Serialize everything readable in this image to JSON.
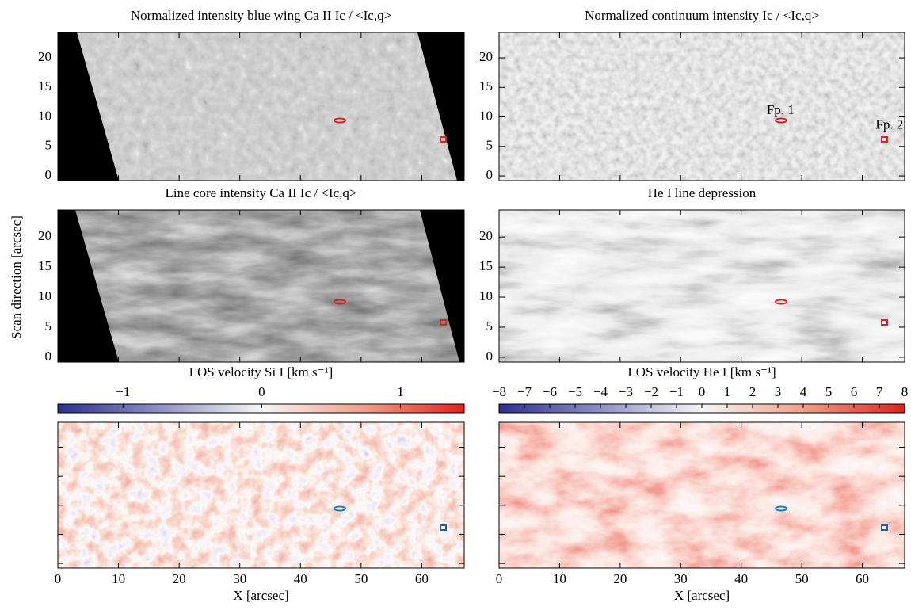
{
  "chart_data": [
    {
      "type": "image",
      "title": "Normalized intensity blue wing Ca II   Ic / <Ic,q>",
      "colormap": "gray",
      "xlim": [
        0,
        67
      ],
      "ylim": [
        -0.8,
        24.3
      ],
      "xticks": [
        0,
        10,
        20,
        30,
        40,
        50,
        60
      ],
      "yticks": [
        0,
        5,
        10,
        15,
        20
      ],
      "show_xtick_labels": false,
      "show_ytick_labels": true
    },
    {
      "type": "image",
      "title": "Normalized continuum intensity   Ic / <Ic,q>",
      "colormap": "gray-light",
      "xlim": [
        0,
        67
      ],
      "ylim": [
        -0.8,
        24.3
      ],
      "xticks": [
        0,
        10,
        20,
        30,
        40,
        50,
        60
      ],
      "yticks": [
        0,
        5,
        10,
        15,
        20
      ],
      "show_xtick_labels": false,
      "show_ytick_labels": true,
      "annotations": [
        {
          "text": "Fp. 1",
          "x": 46.5,
          "y": 11,
          "color": "#2a7ab8"
        },
        {
          "text": "Fp. 2",
          "x": 64.5,
          "y": 8.5,
          "color": "#2a7ab8"
        }
      ]
    },
    {
      "type": "image",
      "title": "Line core intensity Ca II   Ic / <Ic,q>",
      "colormap": "gray-dark",
      "xlim": [
        0,
        67
      ],
      "ylim": [
        -0.8,
        24.5
      ],
      "xticks": [
        0,
        10,
        20,
        30,
        40,
        50,
        60
      ],
      "yticks": [
        0,
        5,
        10,
        15,
        20
      ],
      "show_xtick_labels": false,
      "show_ytick_labels": true,
      "ylabel": "Scan direction   [arcsec]"
    },
    {
      "type": "image",
      "title": "He I line depression",
      "colormap": "gray-lighter",
      "xlim": [
        0,
        67
      ],
      "ylim": [
        -0.8,
        24.5
      ],
      "xticks": [
        0,
        10,
        20,
        30,
        40,
        50,
        60
      ],
      "yticks": [
        0,
        5,
        10,
        15,
        20
      ],
      "show_xtick_labels": false,
      "show_ytick_labels": true
    },
    {
      "type": "image",
      "title": "LOS velocity Si I   [km s⁻¹]",
      "colormap": "bwr",
      "xlim": [
        0,
        67
      ],
      "ylim": [
        -0.8,
        24.3
      ],
      "xticks": [
        0,
        10,
        20,
        30,
        40,
        50,
        60
      ],
      "yticks": [
        0,
        5,
        10,
        15,
        20
      ],
      "show_xtick_labels": true,
      "show_ytick_labels": false,
      "xlabel": "X   [arcsec]",
      "clim": [
        -1.47,
        1.46
      ],
      "cticks": [
        {
          "value": -1,
          "label": "−1"
        },
        0,
        1
      ]
    },
    {
      "type": "image",
      "title": "LOS velocity He I   [km s⁻¹]",
      "colormap": "bwr-strong",
      "xlim": [
        0,
        67
      ],
      "ylim": [
        -0.8,
        24.3
      ],
      "xticks": [
        0,
        10,
        20,
        30,
        40,
        50,
        60
      ],
      "yticks": [
        0,
        5,
        10,
        15,
        20
      ],
      "show_xtick_labels": true,
      "show_ytick_labels": false,
      "xlabel": "X   [arcsec]",
      "clim": [
        -8,
        8
      ],
      "cticks": [
        {
          "value": -8,
          "label": "−8"
        },
        {
          "value": -7,
          "label": "−7"
        },
        {
          "value": -6,
          "label": "−6"
        },
        {
          "value": -5,
          "label": "−5"
        },
        {
          "value": -4,
          "label": "−4"
        },
        {
          "value": -3,
          "label": "−3"
        },
        {
          "value": -2,
          "label": "−2"
        },
        {
          "value": -1,
          "label": "−1"
        },
        0,
        1,
        2,
        3,
        4,
        5,
        6,
        7,
        8
      ]
    }
  ]
}
